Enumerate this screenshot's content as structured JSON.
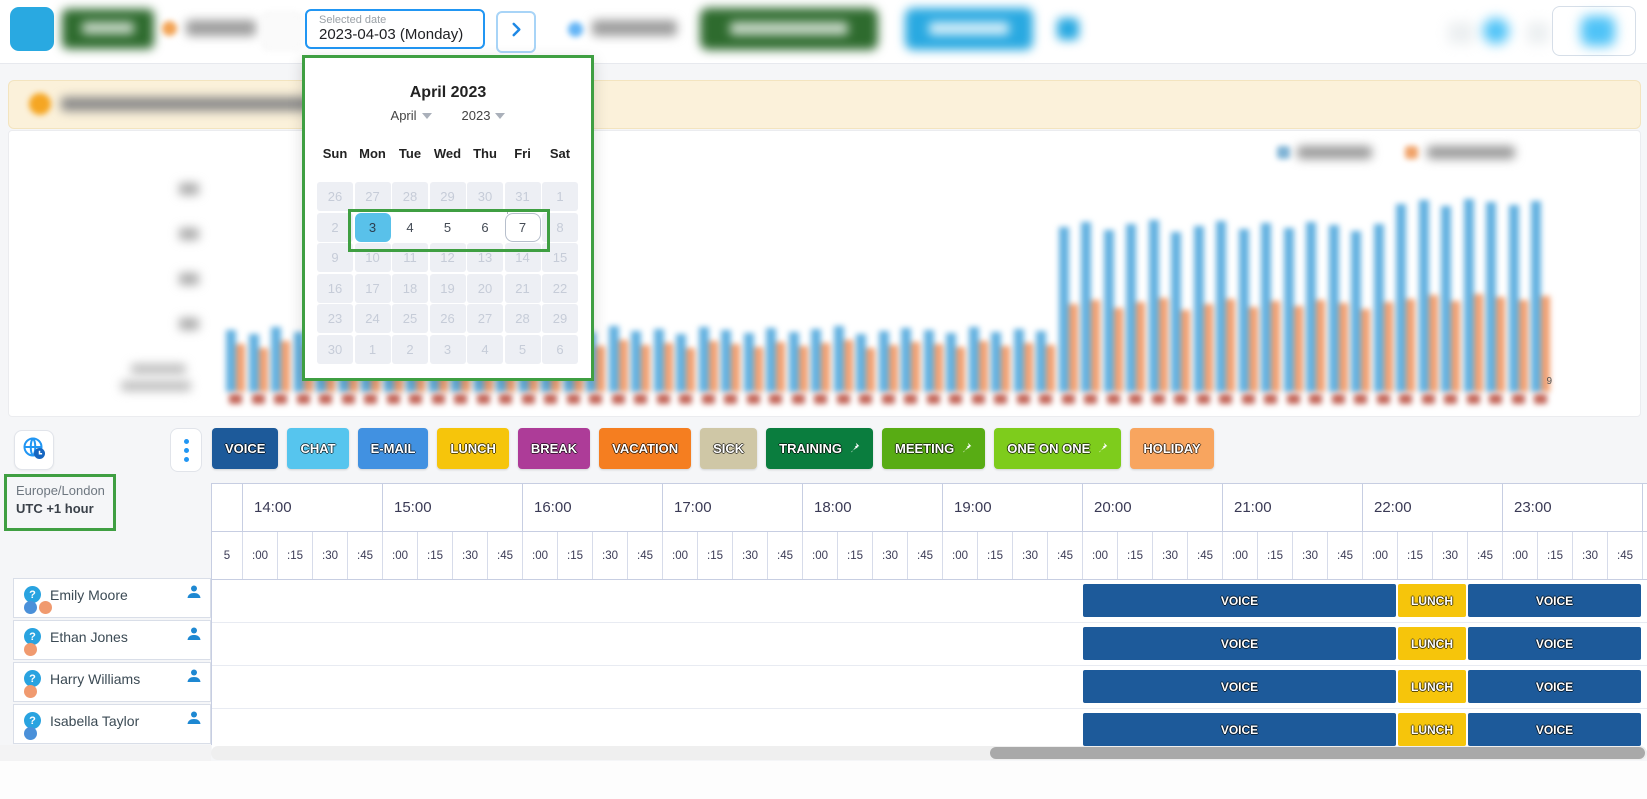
{
  "topbar": {
    "date_label": "Selected date",
    "date_value": "2023-04-03 (Monday)"
  },
  "calendar": {
    "title": "April 2023",
    "month": "April",
    "year": "2023",
    "weekdays": [
      "Sun",
      "Mon",
      "Tue",
      "Wed",
      "Thu",
      "Fri",
      "Sat"
    ],
    "weeks": [
      [
        {
          "d": "26",
          "s": "out"
        },
        {
          "d": "27",
          "s": "out"
        },
        {
          "d": "28",
          "s": "out"
        },
        {
          "d": "29",
          "s": "out"
        },
        {
          "d": "30",
          "s": "out"
        },
        {
          "d": "31",
          "s": "out"
        },
        {
          "d": "1",
          "s": "out"
        }
      ],
      [
        {
          "d": "2",
          "s": "out"
        },
        {
          "d": "3",
          "s": "sel"
        },
        {
          "d": "4",
          "s": "active"
        },
        {
          "d": "5",
          "s": "active"
        },
        {
          "d": "6",
          "s": "active"
        },
        {
          "d": "7",
          "s": "today"
        },
        {
          "d": "8",
          "s": "out"
        }
      ],
      [
        {
          "d": "9",
          "s": "out"
        },
        {
          "d": "10",
          "s": "out"
        },
        {
          "d": "11",
          "s": "out"
        },
        {
          "d": "12",
          "s": "out"
        },
        {
          "d": "13",
          "s": "out"
        },
        {
          "d": "14",
          "s": "out"
        },
        {
          "d": "15",
          "s": "out"
        }
      ],
      [
        {
          "d": "16",
          "s": "out"
        },
        {
          "d": "17",
          "s": "out"
        },
        {
          "d": "18",
          "s": "out"
        },
        {
          "d": "19",
          "s": "out"
        },
        {
          "d": "20",
          "s": "out"
        },
        {
          "d": "21",
          "s": "out"
        },
        {
          "d": "22",
          "s": "out"
        }
      ],
      [
        {
          "d": "23",
          "s": "out"
        },
        {
          "d": "24",
          "s": "out"
        },
        {
          "d": "25",
          "s": "out"
        },
        {
          "d": "26",
          "s": "out"
        },
        {
          "d": "27",
          "s": "out"
        },
        {
          "d": "28",
          "s": "out"
        },
        {
          "d": "29",
          "s": "out"
        }
      ],
      [
        {
          "d": "30",
          "s": "out"
        },
        {
          "d": "1",
          "s": "out"
        },
        {
          "d": "2",
          "s": "out"
        },
        {
          "d": "3",
          "s": "out"
        },
        {
          "d": "4",
          "s": "out"
        },
        {
          "d": "5",
          "s": "out"
        },
        {
          "d": "6",
          "s": "out"
        }
      ]
    ]
  },
  "legend": {
    "chips": [
      {
        "label": "VOICE",
        "color": "#1D5A9A",
        "pin": false
      },
      {
        "label": "CHAT",
        "color": "#56C5EE",
        "pin": false
      },
      {
        "label": "E-MAIL",
        "color": "#4191E1",
        "pin": false
      },
      {
        "label": "LUNCH",
        "color": "#F6C50B",
        "pin": false
      },
      {
        "label": "BREAK",
        "color": "#AD3C98",
        "pin": false
      },
      {
        "label": "VACATION",
        "color": "#F57E20",
        "pin": false
      },
      {
        "label": "SICK",
        "color": "#CFC7A6",
        "pin": false
      },
      {
        "label": "TRAINING",
        "color": "#0A7D3E",
        "pin": true
      },
      {
        "label": "MEETING",
        "color": "#58AC14",
        "pin": true
      },
      {
        "label": "ONE ON ONE",
        "color": "#7ECC1C",
        "pin": true
      },
      {
        "label": "HOLIDAY",
        "color": "#F8A55F",
        "pin": false
      }
    ]
  },
  "timezone": {
    "region": "Europe/London",
    "offset": "UTC +1 hour"
  },
  "schedule": {
    "hours": [
      "14:00",
      "15:00",
      "16:00",
      "17:00",
      "18:00",
      "19:00",
      "20:00",
      "21:00",
      "22:00",
      "23:00"
    ],
    "quarters": [
      ":00",
      ":15",
      ":30",
      ":45"
    ],
    "partial_quarter_label": "5",
    "shifts": [
      {
        "label": "VOICE",
        "start": "20:00",
        "end": "22:15",
        "color": "#1D5A9A"
      },
      {
        "label": "LUNCH",
        "start": "22:15",
        "end": "22:45",
        "color": "#F6C50B"
      },
      {
        "label": "VOICE",
        "start": "22:45",
        "end": "24:00",
        "color": "#1D5A9A"
      }
    ],
    "employees": [
      {
        "name": "Emily Moore",
        "dots": [
          "#4A90D9",
          "#F09A6F"
        ]
      },
      {
        "name": "Ethan Jones",
        "dots": [
          "#F09A6F"
        ]
      },
      {
        "name": "Harry Williams",
        "dots": [
          "#F09A6F"
        ]
      },
      {
        "name": "Isabella Taylor",
        "dots": [
          "#4A90D9"
        ]
      }
    ]
  },
  "chart_note_label": "9",
  "background_chart": {
    "type": "bar",
    "colors": {
      "blue": "#63B1E0",
      "orange": "#F2A071"
    },
    "blue": [
      62,
      58,
      65,
      60,
      63,
      59,
      64,
      61,
      66,
      60,
      58,
      63,
      65,
      59,
      62,
      64,
      60,
      66,
      61,
      63,
      58,
      65,
      62,
      59,
      64,
      60,
      63,
      66,
      58,
      61,
      64,
      62,
      59,
      65,
      60,
      63,
      61,
      165,
      170,
      162,
      168,
      172,
      160,
      166,
      171,
      163,
      169,
      164,
      170,
      167,
      161,
      168,
      188,
      192,
      186,
      193,
      190,
      187,
      191
    ],
    "orange": [
      48,
      44,
      51,
      46,
      49,
      45,
      50,
      47,
      52,
      46,
      44,
      49,
      51,
      45,
      48,
      50,
      46,
      52,
      47,
      49,
      44,
      51,
      48,
      45,
      50,
      46,
      49,
      52,
      44,
      47,
      50,
      48,
      45,
      51,
      46,
      49,
      47,
      88,
      92,
      84,
      90,
      94,
      82,
      88,
      93,
      85,
      91,
      86,
      92,
      89,
      83,
      90,
      93,
      97,
      91,
      98,
      95,
      92,
      96
    ]
  },
  "annotation": {
    "color": "#3F9F42"
  }
}
